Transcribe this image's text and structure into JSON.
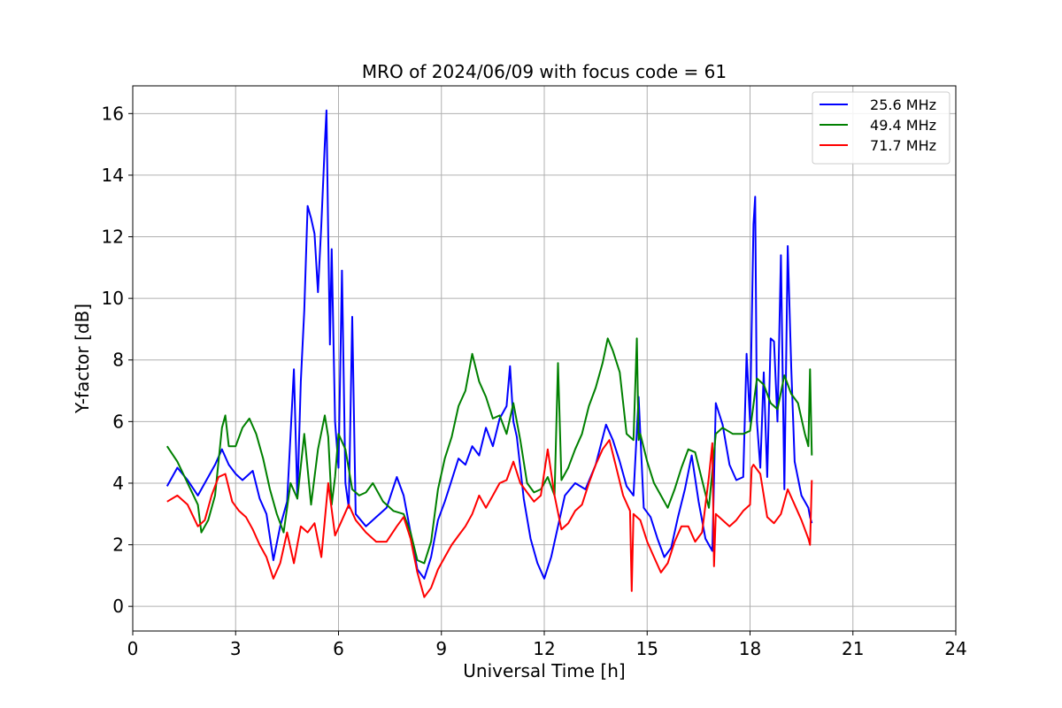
{
  "chart_data": {
    "type": "line",
    "title": "MRO of 2024/06/09 with focus code = 61",
    "xlabel": "Universal Time [h]",
    "ylabel": "Y-factor [dB]",
    "xlim": [
      0,
      24
    ],
    "ylim": [
      -0.8,
      16.9
    ],
    "xticks": [
      0,
      3,
      6,
      9,
      12,
      15,
      18,
      21,
      24
    ],
    "yticks": [
      0,
      2,
      4,
      6,
      8,
      10,
      12,
      14,
      16
    ],
    "grid": true,
    "legend_position": "top-right",
    "series": [
      {
        "name": "25.6 MHz",
        "color": "#0000ff",
        "x": [
          1.0,
          1.3,
          1.6,
          1.9,
          2.1,
          2.4,
          2.6,
          2.8,
          3.0,
          3.2,
          3.5,
          3.7,
          3.9,
          4.1,
          4.3,
          4.5,
          4.7,
          4.8,
          4.9,
          5.0,
          5.1,
          5.2,
          5.3,
          5.4,
          5.5,
          5.6,
          5.65,
          5.7,
          5.75,
          5.8,
          5.9,
          6.0,
          6.1,
          6.2,
          6.3,
          6.4,
          6.5,
          6.8,
          7.1,
          7.4,
          7.7,
          7.9,
          8.1,
          8.3,
          8.5,
          8.7,
          8.9,
          9.1,
          9.3,
          9.5,
          9.7,
          9.9,
          10.1,
          10.3,
          10.5,
          10.7,
          10.9,
          11.0,
          11.1,
          11.2,
          11.4,
          11.6,
          11.8,
          12.0,
          12.2,
          12.4,
          12.6,
          12.9,
          13.2,
          13.5,
          13.8,
          14.0,
          14.2,
          14.4,
          14.6,
          14.75,
          14.9,
          15.1,
          15.3,
          15.5,
          15.7,
          15.9,
          16.1,
          16.3,
          16.5,
          16.7,
          16.9,
          17.0,
          17.2,
          17.4,
          17.6,
          17.8,
          17.9,
          18.0,
          18.1,
          18.15,
          18.2,
          18.3,
          18.4,
          18.5,
          18.6,
          18.7,
          18.8,
          18.9,
          19.0,
          19.1,
          19.2,
          19.3,
          19.5,
          19.7,
          19.75,
          19.8
        ],
        "y": [
          3.9,
          4.5,
          4.1,
          3.6,
          4.0,
          4.6,
          5.1,
          4.6,
          4.3,
          4.1,
          4.4,
          3.5,
          3.0,
          1.5,
          2.6,
          3.4,
          7.7,
          3.5,
          7.3,
          9.6,
          13.0,
          12.6,
          12.1,
          10.2,
          12.4,
          15.0,
          16.1,
          12.0,
          8.5,
          11.6,
          6.0,
          4.5,
          10.9,
          4.0,
          3.2,
          9.4,
          3.0,
          2.6,
          2.9,
          3.2,
          4.2,
          3.6,
          2.4,
          1.2,
          0.9,
          1.6,
          2.8,
          3.4,
          4.1,
          4.8,
          4.6,
          5.2,
          4.9,
          5.8,
          5.2,
          6.1,
          6.5,
          7.8,
          6.0,
          5.5,
          3.5,
          2.2,
          1.4,
          0.9,
          1.6,
          2.6,
          3.6,
          4.0,
          3.8,
          4.6,
          5.9,
          5.4,
          4.7,
          3.9,
          3.6,
          6.8,
          3.2,
          2.9,
          2.2,
          1.6,
          1.9,
          2.9,
          3.8,
          4.9,
          3.4,
          2.2,
          1.8,
          6.6,
          5.9,
          4.6,
          4.1,
          4.2,
          8.2,
          6.0,
          12.4,
          13.3,
          6.0,
          4.5,
          7.6,
          4.2,
          8.7,
          8.6,
          6.0,
          11.4,
          3.8,
          11.7,
          7.8,
          4.7,
          3.6,
          3.2,
          2.9,
          2.7
        ]
      },
      {
        "name": "49.4 MHz",
        "color": "#008000",
        "x": [
          1.0,
          1.3,
          1.6,
          1.9,
          2.0,
          2.2,
          2.4,
          2.6,
          2.7,
          2.8,
          3.0,
          3.2,
          3.4,
          3.6,
          3.8,
          4.0,
          4.2,
          4.4,
          4.6,
          4.8,
          5.0,
          5.2,
          5.4,
          5.6,
          5.7,
          5.8,
          5.9,
          6.0,
          6.2,
          6.4,
          6.6,
          6.8,
          7.0,
          7.3,
          7.6,
          7.9,
          8.1,
          8.3,
          8.5,
          8.7,
          8.9,
          9.1,
          9.3,
          9.5,
          9.7,
          9.9,
          10.1,
          10.3,
          10.5,
          10.7,
          10.9,
          11.1,
          11.3,
          11.5,
          11.7,
          11.9,
          12.1,
          12.3,
          12.4,
          12.5,
          12.7,
          12.9,
          13.1,
          13.3,
          13.5,
          13.7,
          13.85,
          14.0,
          14.2,
          14.4,
          14.6,
          14.7,
          14.75,
          14.8,
          15.0,
          15.2,
          15.4,
          15.6,
          15.8,
          16.0,
          16.2,
          16.4,
          16.6,
          16.8,
          17.0,
          17.2,
          17.5,
          17.8,
          18.0,
          18.2,
          18.4,
          18.6,
          18.8,
          19.0,
          19.2,
          19.4,
          19.6,
          19.7,
          19.75,
          19.8
        ],
        "y": [
          5.2,
          4.7,
          4.0,
          3.3,
          2.4,
          2.8,
          3.6,
          5.8,
          6.2,
          5.2,
          5.2,
          5.8,
          6.1,
          5.6,
          4.8,
          3.8,
          3.0,
          2.4,
          4.0,
          3.5,
          5.6,
          3.3,
          5.1,
          6.2,
          5.5,
          3.3,
          4.2,
          5.6,
          5.1,
          3.8,
          3.6,
          3.7,
          4.0,
          3.4,
          3.1,
          3.0,
          2.4,
          1.5,
          1.4,
          2.1,
          3.8,
          4.8,
          5.5,
          6.5,
          7.0,
          8.2,
          7.3,
          6.8,
          6.1,
          6.2,
          5.6,
          6.6,
          5.4,
          4.0,
          3.7,
          3.8,
          4.2,
          3.6,
          7.9,
          4.1,
          4.5,
          5.1,
          5.6,
          6.5,
          7.1,
          7.9,
          8.7,
          8.3,
          7.6,
          5.6,
          5.4,
          8.7,
          5.4,
          5.6,
          4.7,
          4.0,
          3.6,
          3.2,
          3.8,
          4.5,
          5.1,
          5.0,
          4.1,
          3.2,
          5.6,
          5.8,
          5.6,
          5.6,
          5.7,
          7.4,
          7.2,
          6.6,
          6.4,
          7.5,
          6.9,
          6.6,
          5.6,
          5.2,
          7.7,
          4.9
        ]
      },
      {
        "name": "71.7 MHz",
        "color": "#ff0000",
        "x": [
          1.0,
          1.3,
          1.6,
          1.9,
          2.1,
          2.3,
          2.5,
          2.7,
          2.9,
          3.1,
          3.3,
          3.5,
          3.7,
          3.9,
          4.1,
          4.3,
          4.5,
          4.7,
          4.9,
          5.1,
          5.3,
          5.5,
          5.7,
          5.9,
          6.1,
          6.3,
          6.5,
          6.8,
          7.1,
          7.4,
          7.7,
          7.9,
          8.1,
          8.3,
          8.5,
          8.7,
          8.9,
          9.1,
          9.3,
          9.5,
          9.7,
          9.9,
          10.1,
          10.3,
          10.5,
          10.7,
          10.9,
          11.1,
          11.3,
          11.5,
          11.7,
          11.9,
          12.1,
          12.3,
          12.5,
          12.7,
          12.9,
          13.1,
          13.3,
          13.5,
          13.7,
          13.9,
          14.1,
          14.3,
          14.5,
          14.55,
          14.6,
          14.8,
          15.0,
          15.2,
          15.4,
          15.6,
          15.8,
          16.0,
          16.2,
          16.4,
          16.6,
          16.8,
          16.9,
          16.95,
          17.0,
          17.2,
          17.4,
          17.6,
          17.8,
          18.0,
          18.05,
          18.1,
          18.3,
          18.5,
          18.7,
          18.9,
          19.1,
          19.3,
          19.5,
          19.7,
          19.75,
          19.8
        ],
        "y": [
          3.4,
          3.6,
          3.3,
          2.6,
          2.8,
          3.6,
          4.2,
          4.3,
          3.4,
          3.1,
          2.9,
          2.5,
          2.0,
          1.6,
          0.9,
          1.4,
          2.4,
          1.4,
          2.6,
          2.4,
          2.7,
          1.6,
          4.0,
          2.3,
          2.8,
          3.3,
          2.8,
          2.4,
          2.1,
          2.1,
          2.6,
          2.9,
          2.2,
          1.1,
          0.3,
          0.6,
          1.2,
          1.6,
          2.0,
          2.3,
          2.6,
          3.0,
          3.6,
          3.2,
          3.6,
          4.0,
          4.1,
          4.7,
          4.0,
          3.7,
          3.4,
          3.6,
          5.1,
          3.6,
          2.5,
          2.7,
          3.1,
          3.3,
          4.0,
          4.6,
          5.1,
          5.4,
          4.5,
          3.6,
          3.1,
          0.5,
          3.0,
          2.8,
          2.1,
          1.6,
          1.1,
          1.4,
          2.1,
          2.6,
          2.6,
          2.1,
          2.4,
          4.2,
          5.3,
          1.3,
          3.0,
          2.8,
          2.6,
          2.8,
          3.1,
          3.3,
          4.5,
          4.6,
          4.3,
          2.9,
          2.7,
          3.0,
          3.8,
          3.3,
          2.8,
          2.2,
          2.0,
          4.1
        ]
      }
    ]
  }
}
